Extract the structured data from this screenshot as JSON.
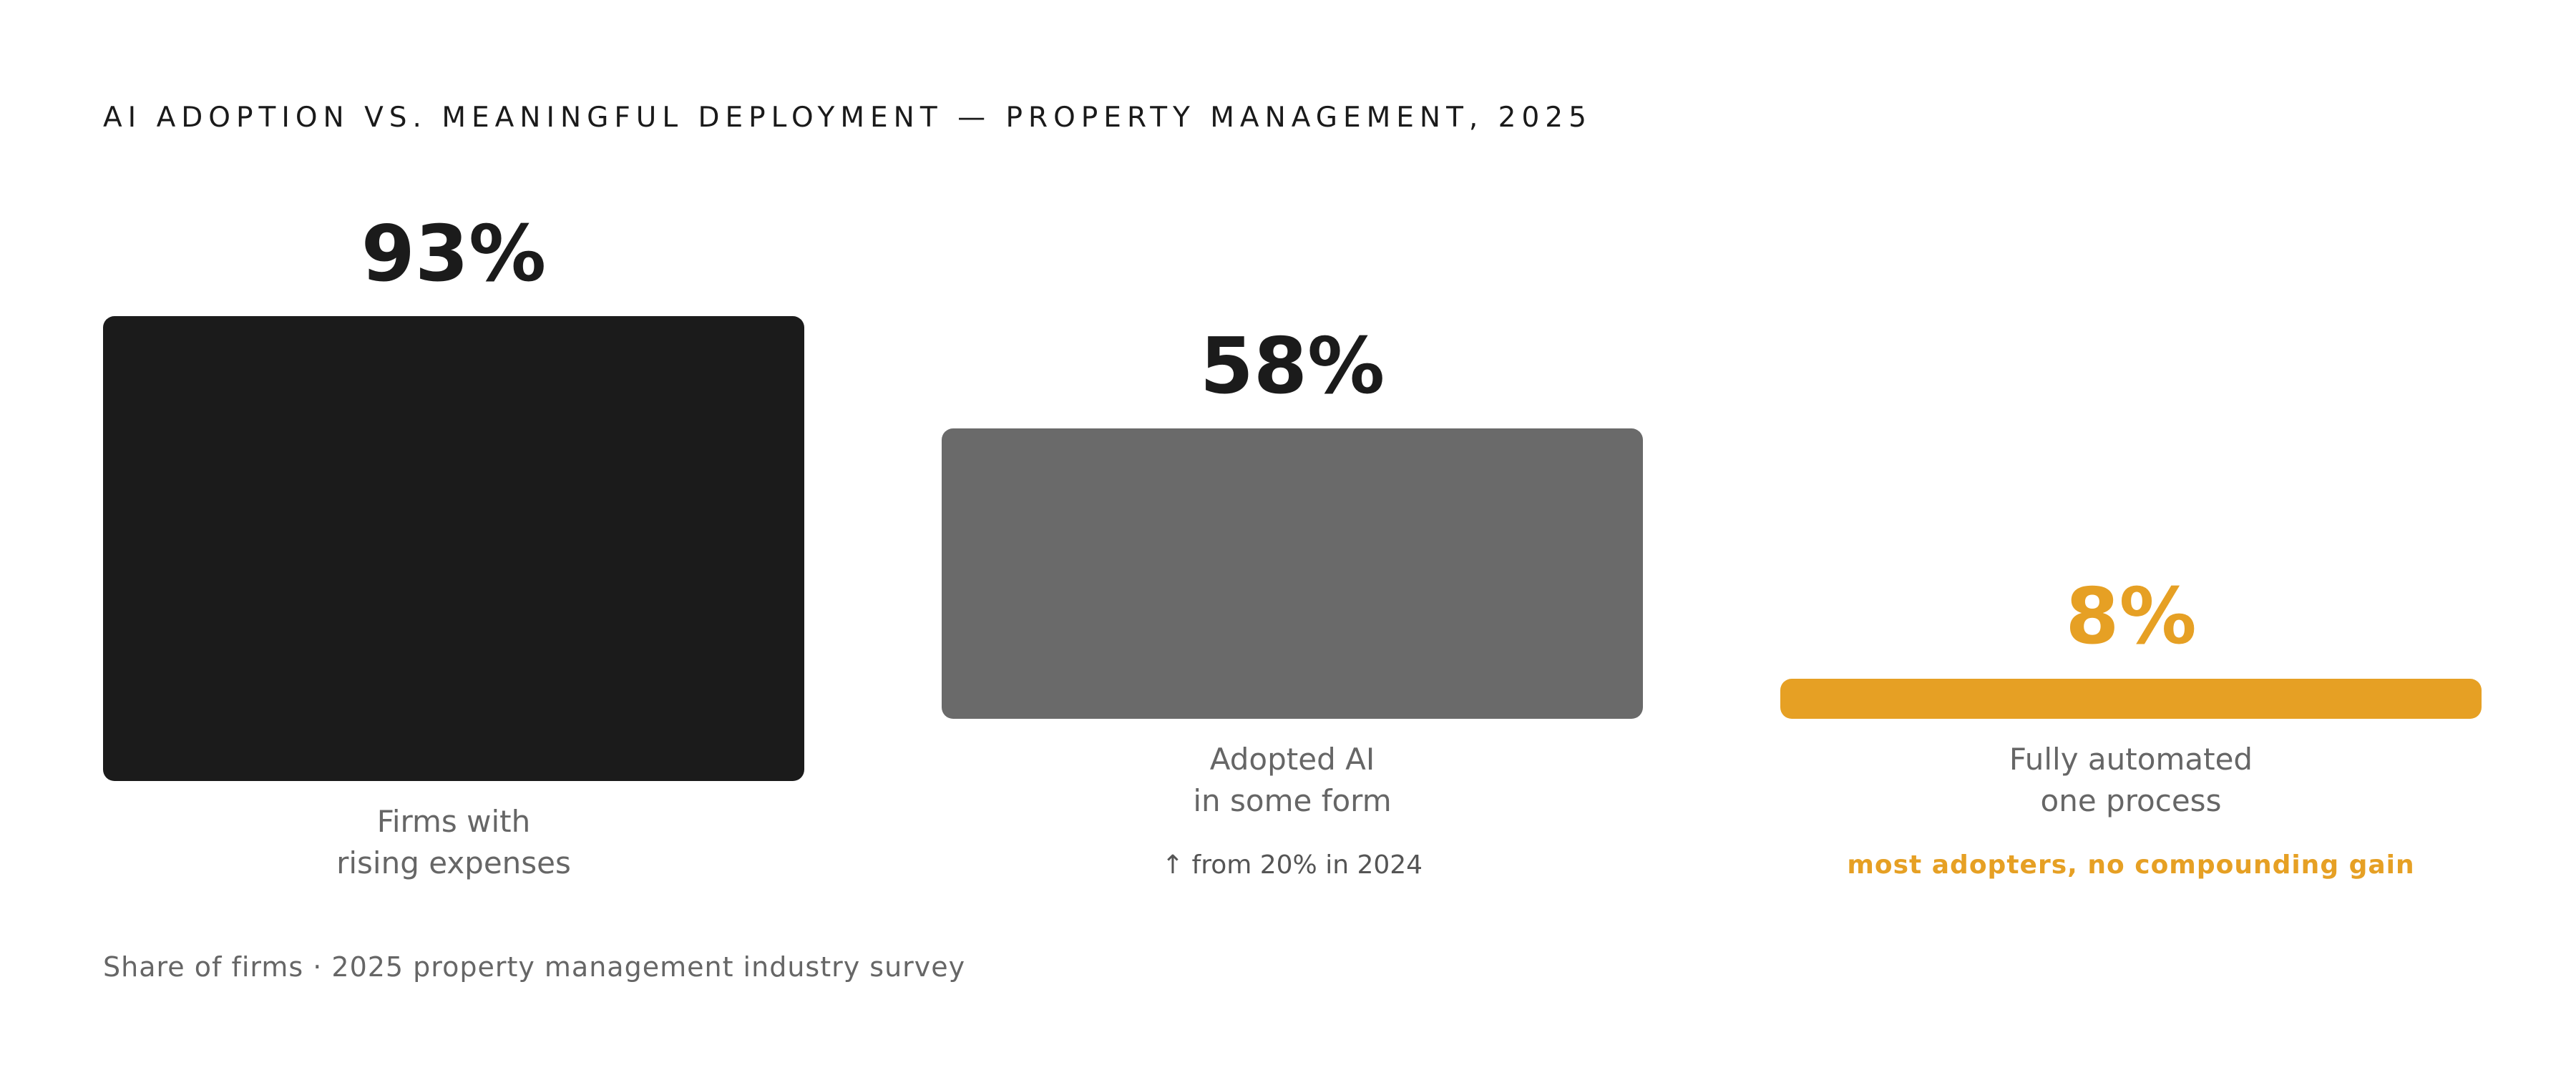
{
  "title": "AI ADOPTION VS. MEANINGFUL DEPLOYMENT — PROPERTY MANAGEMENT, 2025",
  "footer": "Share of firms · 2025 property management industry survey",
  "colors": {
    "dark": "#1b1b1b",
    "gray": "#6a6a6a",
    "accent": "#e6a024",
    "label": "#666666",
    "note": "#555555"
  },
  "chart_data": {
    "type": "bar",
    "categories": [
      "Firms with rising expenses",
      "Adopted AI in some form",
      "Fully automated one process"
    ],
    "values": [
      93,
      58,
      8
    ],
    "unit": "%",
    "ylim": [
      0,
      100
    ],
    "bars": [
      {
        "value_label": "93%",
        "label_lines": [
          "Firms with",
          "rising expenses"
        ],
        "note": "",
        "color": "#1b1b1b"
      },
      {
        "value_label": "58%",
        "label_lines": [
          "Adopted AI",
          "in some form"
        ],
        "note": "↑ from 20% in 2024",
        "color": "#6a6a6a"
      },
      {
        "value_label": "8%",
        "label_lines": [
          "Fully automated",
          "one process"
        ],
        "note": "most adopters, no compounding gain",
        "color": "#e6a024"
      }
    ]
  }
}
